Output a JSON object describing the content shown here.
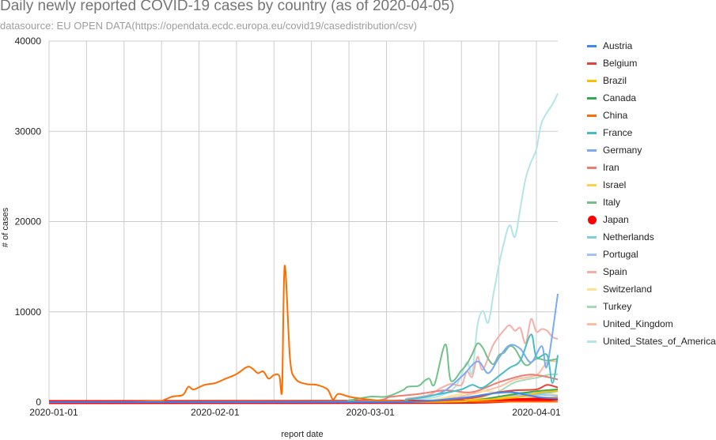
{
  "chart_data": {
    "type": "line",
    "title": "Daily newly reported COVID-19 cases by country (as of 2020-04-05)",
    "subtitle": "datasource: EU OPEN DATA(https://opendata.ecdc.europa.eu/covid19/casedistribution/csv)",
    "xlabel": "report date",
    "ylabel": "# of cases",
    "xlim": [
      "2020-01-01",
      "2020-04-05"
    ],
    "ylim": [
      0,
      40000
    ],
    "x_ticks": [
      "2020-01-01",
      "2020-02-01",
      "2020-03-01",
      "2020-04-01"
    ],
    "y_ticks": [
      "0",
      "10000",
      "20000",
      "30000",
      "40000"
    ],
    "grid": true,
    "legend_position": "right",
    "series": [
      {
        "name": "Austria",
        "color": "#4285f4",
        "points": [
          [
            "2020-01-01",
            0
          ],
          [
            "2020-03-01",
            0
          ],
          [
            "2020-03-10",
            80
          ],
          [
            "2020-03-15",
            300
          ],
          [
            "2020-03-20",
            600
          ],
          [
            "2020-03-23",
            900
          ],
          [
            "2020-03-27",
            1100
          ],
          [
            "2020-03-30",
            800
          ],
          [
            "2020-04-02",
            500
          ],
          [
            "2020-04-05",
            400
          ]
        ]
      },
      {
        "name": "Belgium",
        "color": "#ea4335",
        "points": [
          [
            "2020-01-01",
            0
          ],
          [
            "2020-03-01",
            0
          ],
          [
            "2020-03-10",
            50
          ],
          [
            "2020-03-20",
            460
          ],
          [
            "2020-03-24",
            1000
          ],
          [
            "2020-03-28",
            1300
          ],
          [
            "2020-04-01",
            1400
          ],
          [
            "2020-04-03",
            1900
          ],
          [
            "2020-04-05",
            1600
          ]
        ]
      },
      {
        "name": "Brazil",
        "color": "#fbbc04",
        "points": [
          [
            "2020-01-01",
            0
          ],
          [
            "2020-03-10",
            10
          ],
          [
            "2020-03-20",
            200
          ],
          [
            "2020-03-28",
            500
          ],
          [
            "2020-04-02",
            1100
          ],
          [
            "2020-04-05",
            1200
          ]
        ]
      },
      {
        "name": "Canada",
        "color": "#34a853",
        "points": [
          [
            "2020-01-01",
            0
          ],
          [
            "2020-03-10",
            15
          ],
          [
            "2020-03-20",
            200
          ],
          [
            "2020-03-26",
            700
          ],
          [
            "2020-04-01",
            1200
          ],
          [
            "2020-04-05",
            1400
          ]
        ]
      },
      {
        "name": "China",
        "color": "#ff6d01",
        "points": [
          [
            "2020-01-01",
            0
          ],
          [
            "2020-01-15",
            0
          ],
          [
            "2020-01-20",
            100
          ],
          [
            "2020-01-22",
            150
          ],
          [
            "2020-01-24",
            600
          ],
          [
            "2020-01-26",
            800
          ],
          [
            "2020-01-27",
            1700
          ],
          [
            "2020-01-28",
            1400
          ],
          [
            "2020-01-30",
            1900
          ],
          [
            "2020-02-01",
            2100
          ],
          [
            "2020-02-03",
            2600
          ],
          [
            "2020-02-05",
            3100
          ],
          [
            "2020-02-07",
            3900
          ],
          [
            "2020-02-08",
            3700
          ],
          [
            "2020-02-09",
            3200
          ],
          [
            "2020-02-10",
            3400
          ],
          [
            "2020-02-11",
            2600
          ],
          [
            "2020-02-12",
            3000
          ],
          [
            "2020-02-13",
            2900
          ],
          [
            "2020-02-13.5",
            1200
          ],
          [
            "2020-02-14",
            15100
          ],
          [
            "2020-02-15",
            4800
          ],
          [
            "2020-02-16",
            2600
          ],
          [
            "2020-02-18",
            2000
          ],
          [
            "2020-02-20",
            1900
          ],
          [
            "2020-02-22",
            1400
          ],
          [
            "2020-02-23",
            300
          ],
          [
            "2020-02-24",
            900
          ],
          [
            "2020-02-26",
            600
          ],
          [
            "2020-02-28",
            400
          ],
          [
            "2020-03-02",
            200
          ],
          [
            "2020-03-05",
            120
          ],
          [
            "2020-03-10",
            40
          ],
          [
            "2020-03-20",
            40
          ],
          [
            "2020-04-05",
            40
          ]
        ]
      },
      {
        "name": "France",
        "color": "#46bdc6",
        "points": [
          [
            "2020-01-01",
            0
          ],
          [
            "2020-03-01",
            30
          ],
          [
            "2020-03-08",
            300
          ],
          [
            "2020-03-14",
            900
          ],
          [
            "2020-03-18",
            1400
          ],
          [
            "2020-03-20",
            1900
          ],
          [
            "2020-03-22",
            1600
          ],
          [
            "2020-03-25",
            2900
          ],
          [
            "2020-03-27",
            3800
          ],
          [
            "2020-03-29",
            4600
          ],
          [
            "2020-03-31",
            7500
          ],
          [
            "2020-04-01",
            5000
          ],
          [
            "2020-04-03",
            5200
          ],
          [
            "2020-04-04",
            2100
          ],
          [
            "2020-04-05",
            5200
          ]
        ]
      },
      {
        "name": "Germany",
        "color": "#7baaf7",
        "points": [
          [
            "2020-01-01",
            0
          ],
          [
            "2020-03-01",
            20
          ],
          [
            "2020-03-08",
            300
          ],
          [
            "2020-03-14",
            1000
          ],
          [
            "2020-03-18",
            2800
          ],
          [
            "2020-03-21",
            4500
          ],
          [
            "2020-03-23",
            3200
          ],
          [
            "2020-03-25",
            4900
          ],
          [
            "2020-03-27",
            6300
          ],
          [
            "2020-03-29",
            5900
          ],
          [
            "2020-03-31",
            4400
          ],
          [
            "2020-04-02",
            6200
          ],
          [
            "2020-04-03",
            4000
          ],
          [
            "2020-04-05",
            12000
          ]
        ]
      },
      {
        "name": "Iran",
        "color": "#f07b72",
        "points": [
          [
            "2020-01-01",
            0
          ],
          [
            "2020-02-25",
            40
          ],
          [
            "2020-03-05",
            600
          ],
          [
            "2020-03-10",
            900
          ],
          [
            "2020-03-15",
            1300
          ],
          [
            "2020-03-20",
            1100
          ],
          [
            "2020-03-25",
            2200
          ],
          [
            "2020-03-30",
            3000
          ],
          [
            "2020-04-02",
            2900
          ],
          [
            "2020-04-05",
            2500
          ]
        ]
      },
      {
        "name": "Israel",
        "color": "#fcd04f",
        "points": [
          [
            "2020-01-01",
            0
          ],
          [
            "2020-03-10",
            20
          ],
          [
            "2020-03-20",
            300
          ],
          [
            "2020-03-28",
            600
          ],
          [
            "2020-04-05",
            500
          ]
        ]
      },
      {
        "name": "Italy",
        "color": "#71c287",
        "points": [
          [
            "2020-01-01",
            0
          ],
          [
            "2020-02-22",
            50
          ],
          [
            "2020-02-26",
            200
          ],
          [
            "2020-03-01",
            600
          ],
          [
            "2020-03-04",
            600
          ],
          [
            "2020-03-07",
            1300
          ],
          [
            "2020-03-08",
            1700
          ],
          [
            "2020-03-10",
            1800
          ],
          [
            "2020-03-11",
            2300
          ],
          [
            "2020-03-12",
            2600
          ],
          [
            "2020-03-13",
            2000
          ],
          [
            "2020-03-15",
            6400
          ],
          [
            "2020-03-16",
            2400
          ],
          [
            "2020-03-18",
            3500
          ],
          [
            "2020-03-19",
            4200
          ],
          [
            "2020-03-20",
            5300
          ],
          [
            "2020-03-21",
            6500
          ],
          [
            "2020-03-22",
            6000
          ],
          [
            "2020-03-23",
            4800
          ],
          [
            "2020-03-24",
            4200
          ],
          [
            "2020-03-25",
            5200
          ],
          [
            "2020-03-26",
            5500
          ],
          [
            "2020-03-27",
            6200
          ],
          [
            "2020-03-28",
            5900
          ],
          [
            "2020-03-30",
            4100
          ],
          [
            "2020-04-01",
            4800
          ],
          [
            "2020-04-03",
            4600
          ],
          [
            "2020-04-05",
            4800
          ]
        ]
      },
      {
        "name": "Japan",
        "color": "#ff0000",
        "points": [
          [
            "2020-01-01",
            0
          ],
          [
            "2020-03-01",
            20
          ],
          [
            "2020-03-20",
            40
          ],
          [
            "2020-03-28",
            200
          ],
          [
            "2020-04-02",
            300
          ],
          [
            "2020-04-05",
            400
          ]
        ]
      },
      {
        "name": "Netherlands",
        "color": "#7ed1d7",
        "points": [
          [
            "2020-01-01",
            0
          ],
          [
            "2020-03-05",
            30
          ],
          [
            "2020-03-15",
            200
          ],
          [
            "2020-03-20",
            600
          ],
          [
            "2020-03-26",
            1100
          ],
          [
            "2020-04-01",
            900
          ],
          [
            "2020-04-05",
            1200
          ]
        ]
      },
      {
        "name": "Portugal",
        "color": "#a1c2fa",
        "points": [
          [
            "2020-01-01",
            0
          ],
          [
            "2020-03-10",
            10
          ],
          [
            "2020-03-20",
            250
          ],
          [
            "2020-03-28",
            700
          ],
          [
            "2020-04-02",
            800
          ],
          [
            "2020-04-05",
            700
          ]
        ]
      },
      {
        "name": "Spain",
        "color": "#f6aea9",
        "points": [
          [
            "2020-01-01",
            0
          ],
          [
            "2020-03-01",
            30
          ],
          [
            "2020-03-08",
            400
          ],
          [
            "2020-03-12",
            800
          ],
          [
            "2020-03-14",
            1500
          ],
          [
            "2020-03-16",
            2000
          ],
          [
            "2020-03-18",
            1900
          ],
          [
            "2020-03-19",
            3400
          ],
          [
            "2020-03-20",
            2800
          ],
          [
            "2020-03-21",
            5000
          ],
          [
            "2020-03-22",
            3600
          ],
          [
            "2020-03-24",
            6400
          ],
          [
            "2020-03-26",
            8000
          ],
          [
            "2020-03-27",
            8500
          ],
          [
            "2020-03-28",
            7900
          ],
          [
            "2020-03-29",
            8200
          ],
          [
            "2020-03-30",
            6500
          ],
          [
            "2020-03-31",
            9200
          ],
          [
            "2020-04-01",
            7800
          ],
          [
            "2020-04-02",
            8100
          ],
          [
            "2020-04-03",
            7900
          ],
          [
            "2020-04-04",
            7200
          ],
          [
            "2020-04-05",
            7000
          ]
        ]
      },
      {
        "name": "Switzerland",
        "color": "#fde293",
        "points": [
          [
            "2020-01-01",
            0
          ],
          [
            "2020-03-05",
            20
          ],
          [
            "2020-03-12",
            200
          ],
          [
            "2020-03-18",
            900
          ],
          [
            "2020-03-22",
            1200
          ],
          [
            "2020-03-26",
            1000
          ],
          [
            "2020-04-01",
            1100
          ],
          [
            "2020-04-05",
            800
          ]
        ]
      },
      {
        "name": "Turkey",
        "color": "#a8dab5",
        "points": [
          [
            "2020-01-01",
            0
          ],
          [
            "2020-03-15",
            20
          ],
          [
            "2020-03-20",
            300
          ],
          [
            "2020-03-25",
            1200
          ],
          [
            "2020-03-28",
            2200
          ],
          [
            "2020-04-01",
            2700
          ],
          [
            "2020-04-03",
            3000
          ],
          [
            "2020-04-05",
            3100
          ]
        ]
      },
      {
        "name": "United_Kingdom",
        "color": "#fbbfa0",
        "points": [
          [
            "2020-01-01",
            0
          ],
          [
            "2020-03-05",
            30
          ],
          [
            "2020-03-15",
            400
          ],
          [
            "2020-03-20",
            900
          ],
          [
            "2020-03-25",
            1700
          ],
          [
            "2020-03-28",
            2500
          ],
          [
            "2020-04-01",
            3000
          ],
          [
            "2020-04-03",
            4400
          ],
          [
            "2020-04-05",
            4500
          ]
        ]
      },
      {
        "name": "United_States_of_America",
        "color": "#b3e5e8",
        "points": [
          [
            "2020-01-01",
            0
          ],
          [
            "2020-03-01",
            20
          ],
          [
            "2020-03-06",
            100
          ],
          [
            "2020-03-10",
            300
          ],
          [
            "2020-03-14",
            700
          ],
          [
            "2020-03-17",
            1800
          ],
          [
            "2020-03-19",
            4400
          ],
          [
            "2020-03-20",
            3200
          ],
          [
            "2020-03-21",
            8500
          ],
          [
            "2020-03-22",
            10100
          ],
          [
            "2020-03-23",
            8800
          ],
          [
            "2020-03-24",
            12000
          ],
          [
            "2020-03-25",
            15200
          ],
          [
            "2020-03-26",
            17800
          ],
          [
            "2020-03-27",
            19600
          ],
          [
            "2020-03-28",
            18300
          ],
          [
            "2020-03-29",
            21500
          ],
          [
            "2020-03-30",
            24800
          ],
          [
            "2020-03-31",
            26600
          ],
          [
            "2020-04-01",
            28000
          ],
          [
            "2020-04-02",
            31000
          ],
          [
            "2020-04-04",
            33000
          ],
          [
            "2020-04-05",
            34200
          ]
        ]
      }
    ]
  }
}
